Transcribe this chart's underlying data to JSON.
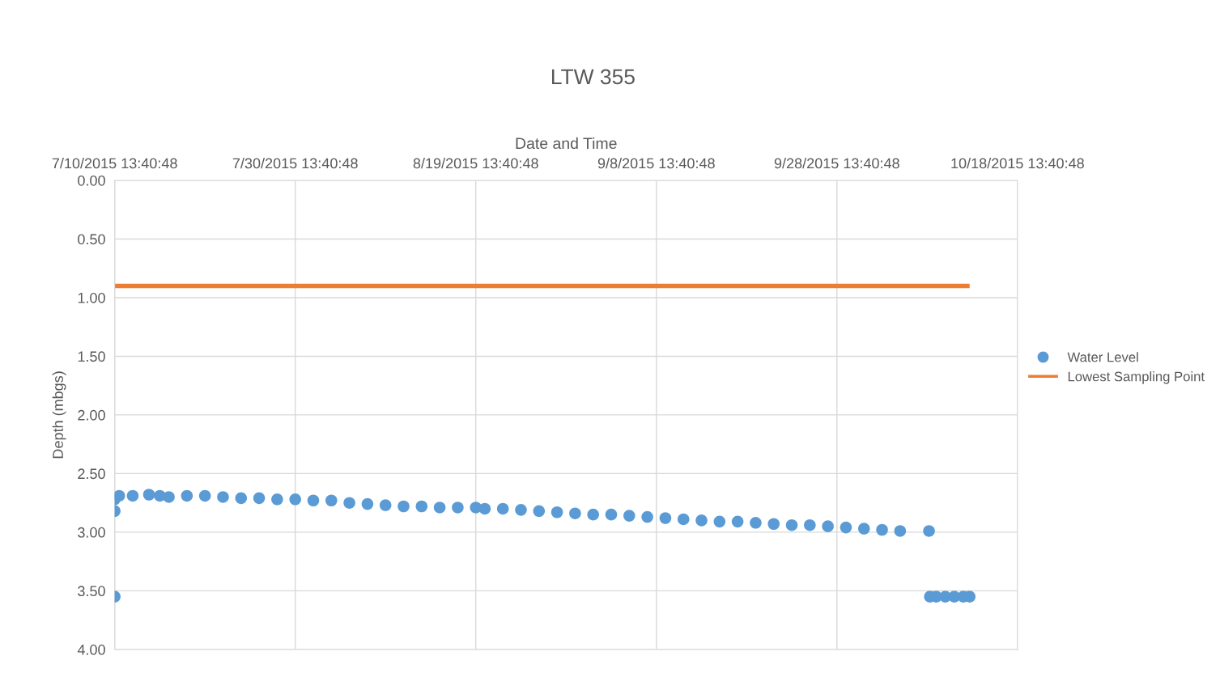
{
  "chart_data": {
    "type": "scatter",
    "title": "LTW 355",
    "xlabel": "Date and Time",
    "ylabel": "Depth (mbgs)",
    "xlim": [
      "2015-07-10T13:40",
      "2015-10-18T13:40"
    ],
    "xticks": [
      {
        "value": "2015-07-10T13:40",
        "label": "7/10/2015 13:40:48"
      },
      {
        "value": "2015-07-30T13:40",
        "label": "7/30/2015 13:40:48"
      },
      {
        "value": "2015-08-19T13:40",
        "label": "8/19/2015 13:40:48"
      },
      {
        "value": "2015-09-08T13:40",
        "label": "9/8/2015 13:40:48"
      },
      {
        "value": "2015-09-28T13:40",
        "label": "9/28/2015 13:40:48"
      },
      {
        "value": "2015-10-18T13:40",
        "label": "10/18/2015 13:40:48"
      }
    ],
    "ylim": [
      4,
      0
    ],
    "yticks": [
      {
        "value": 0,
        "label": "0.00"
      },
      {
        "value": 0.5,
        "label": "0.50"
      },
      {
        "value": 1,
        "label": "1.00"
      },
      {
        "value": 1.5,
        "label": "1.50"
      },
      {
        "value": 2,
        "label": "2.00"
      },
      {
        "value": 2.5,
        "label": "2.50"
      },
      {
        "value": 3,
        "label": "3.00"
      },
      {
        "value": 3.5,
        "label": "3.50"
      },
      {
        "value": 4,
        "label": "4.00"
      }
    ],
    "grid": true,
    "legend": "right",
    "marker": "circle",
    "series": [
      {
        "name": "Water Level",
        "color": "#5b9bd5",
        "x": [
          "2015-07-10T13:40",
          "2015-07-10T13:40",
          "2015-07-10T13:40",
          "2015-07-11T01:40",
          "2015-07-12T13:40",
          "2015-07-14T08:52",
          "2015-07-15T13:40",
          "2015-07-16T13:40",
          "2015-07-18T13:40",
          "2015-07-20T13:40",
          "2015-07-22T13:40",
          "2015-07-24T13:40",
          "2015-07-26T13:40",
          "2015-07-28T13:40",
          "2015-07-30T13:40",
          "2015-08-01T13:40",
          "2015-08-03T13:40",
          "2015-08-05T13:40",
          "2015-08-07T13:40",
          "2015-08-09T13:40",
          "2015-08-11T13:40",
          "2015-08-13T13:40",
          "2015-08-15T13:40",
          "2015-08-17T13:40",
          "2015-08-19T13:40",
          "2015-08-20T13:40",
          "2015-08-22T13:40",
          "2015-08-24T13:40",
          "2015-08-26T13:40",
          "2015-08-28T13:40",
          "2015-08-30T13:40",
          "2015-09-01T13:40",
          "2015-09-03T13:40",
          "2015-09-05T13:40",
          "2015-09-07T13:40",
          "2015-09-09T13:40",
          "2015-09-11T13:40",
          "2015-09-13T13:40",
          "2015-09-15T13:40",
          "2015-09-17T13:40",
          "2015-09-19T13:40",
          "2015-09-21T13:40",
          "2015-09-23T13:40",
          "2015-09-25T13:40",
          "2015-09-27T13:40",
          "2015-09-29T13:40",
          "2015-10-01T13:40",
          "2015-10-03T13:40",
          "2015-10-05T13:40",
          "2015-10-08T18:28",
          "2015-10-08T20:52",
          "2015-10-09T13:40",
          "2015-10-10T13:40",
          "2015-10-11T13:40",
          "2015-10-12T13:40",
          "2015-10-13T06:28"
        ],
        "values": [
          2.72,
          2.82,
          3.55,
          2.69,
          2.69,
          2.68,
          2.69,
          2.7,
          2.69,
          2.69,
          2.7,
          2.71,
          2.71,
          2.72,
          2.72,
          2.73,
          2.73,
          2.75,
          2.76,
          2.77,
          2.78,
          2.78,
          2.79,
          2.79,
          2.79,
          2.8,
          2.8,
          2.81,
          2.82,
          2.83,
          2.84,
          2.85,
          2.85,
          2.86,
          2.87,
          2.88,
          2.89,
          2.9,
          2.91,
          2.91,
          2.92,
          2.93,
          2.94,
          2.94,
          2.95,
          2.96,
          2.97,
          2.98,
          2.99,
          2.99,
          3.55,
          3.55,
          3.55,
          3.55,
          3.55,
          3.55
        ]
      },
      {
        "name": "Lowest Sampling Point",
        "type": "line",
        "marker": "none",
        "color": "#ed7d31",
        "x": [
          "2015-07-10T13:40",
          "2015-10-13T06:28"
        ],
        "values": [
          0.9,
          0.9
        ]
      }
    ]
  }
}
